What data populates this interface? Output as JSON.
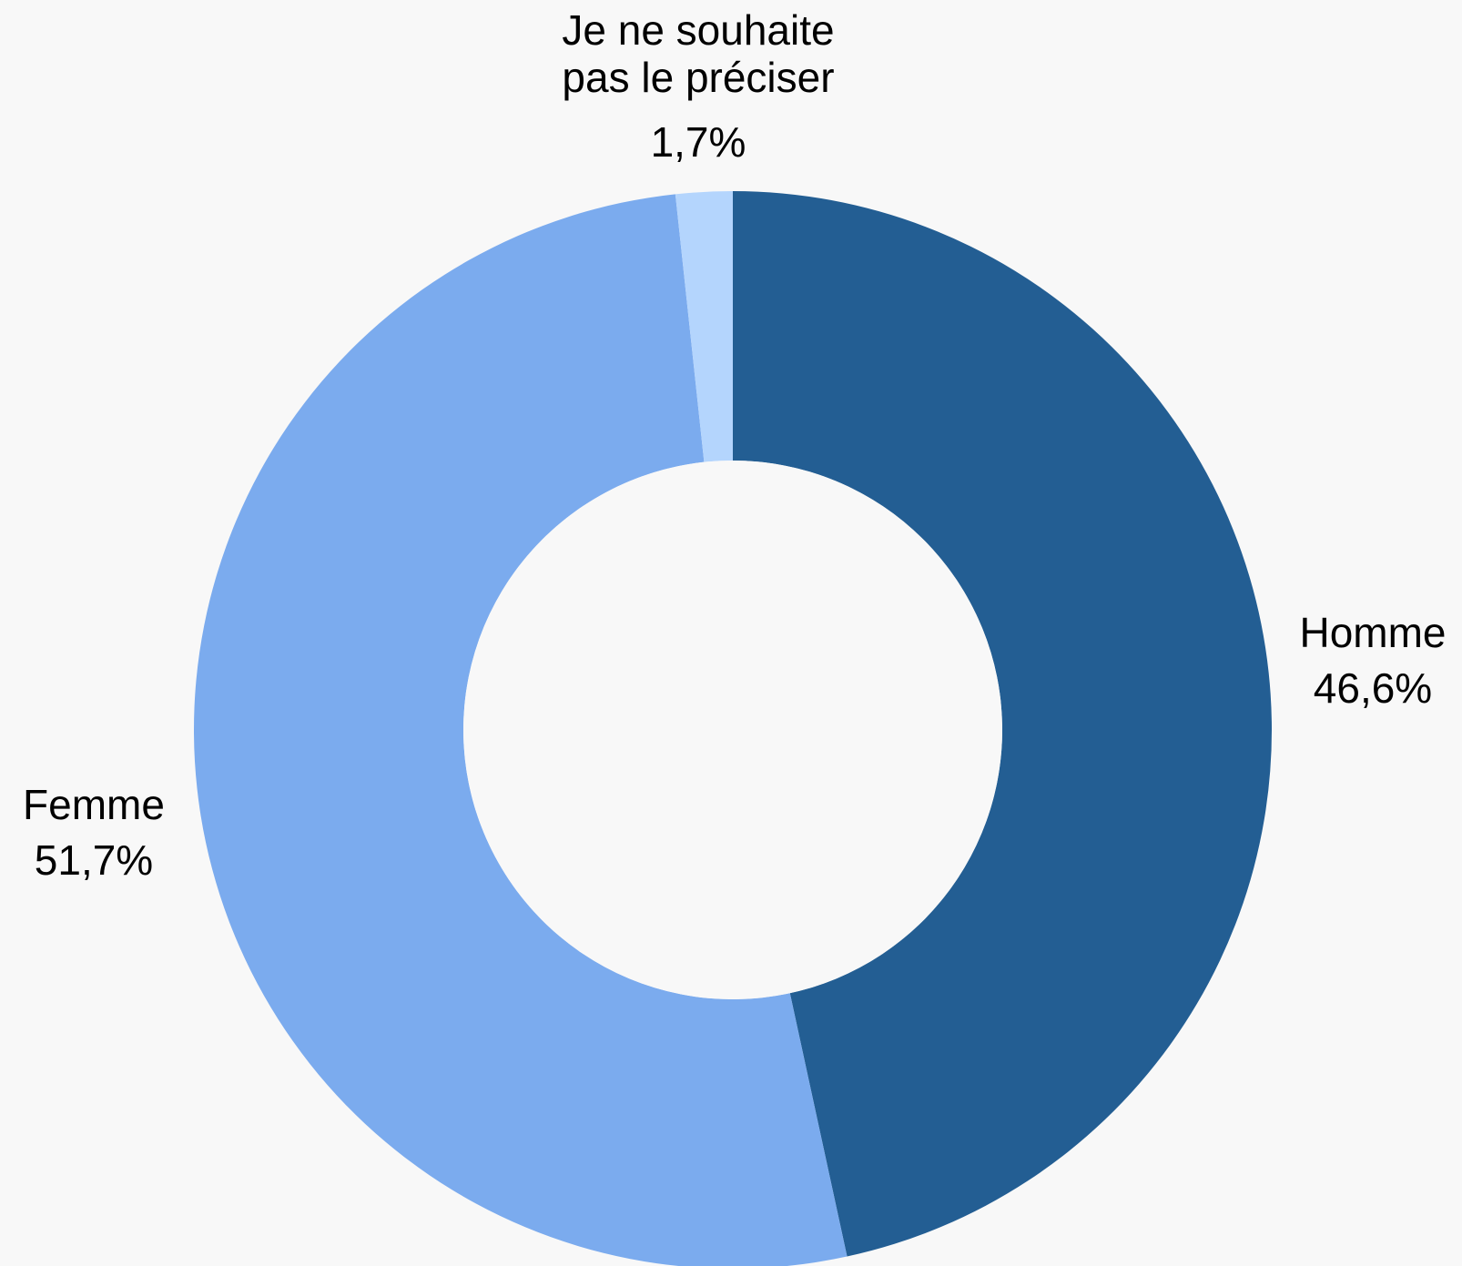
{
  "chart_data": {
    "type": "pie",
    "variant": "donut",
    "slices": [
      {
        "label": "Homme",
        "value": 46.6,
        "display": "46,6%",
        "color": "#235e93"
      },
      {
        "label": "Femme",
        "value": 51.7,
        "display": "51,7%",
        "color": "#7babee"
      },
      {
        "label": "Je ne souhaite pas le préciser",
        "label_lines": [
          "Je ne souhaite",
          "pas le préciser"
        ],
        "value": 1.7,
        "display": "1,7%",
        "color": "#b4d5fd"
      }
    ],
    "start": "top",
    "direction": "clockwise",
    "legend": "none"
  }
}
